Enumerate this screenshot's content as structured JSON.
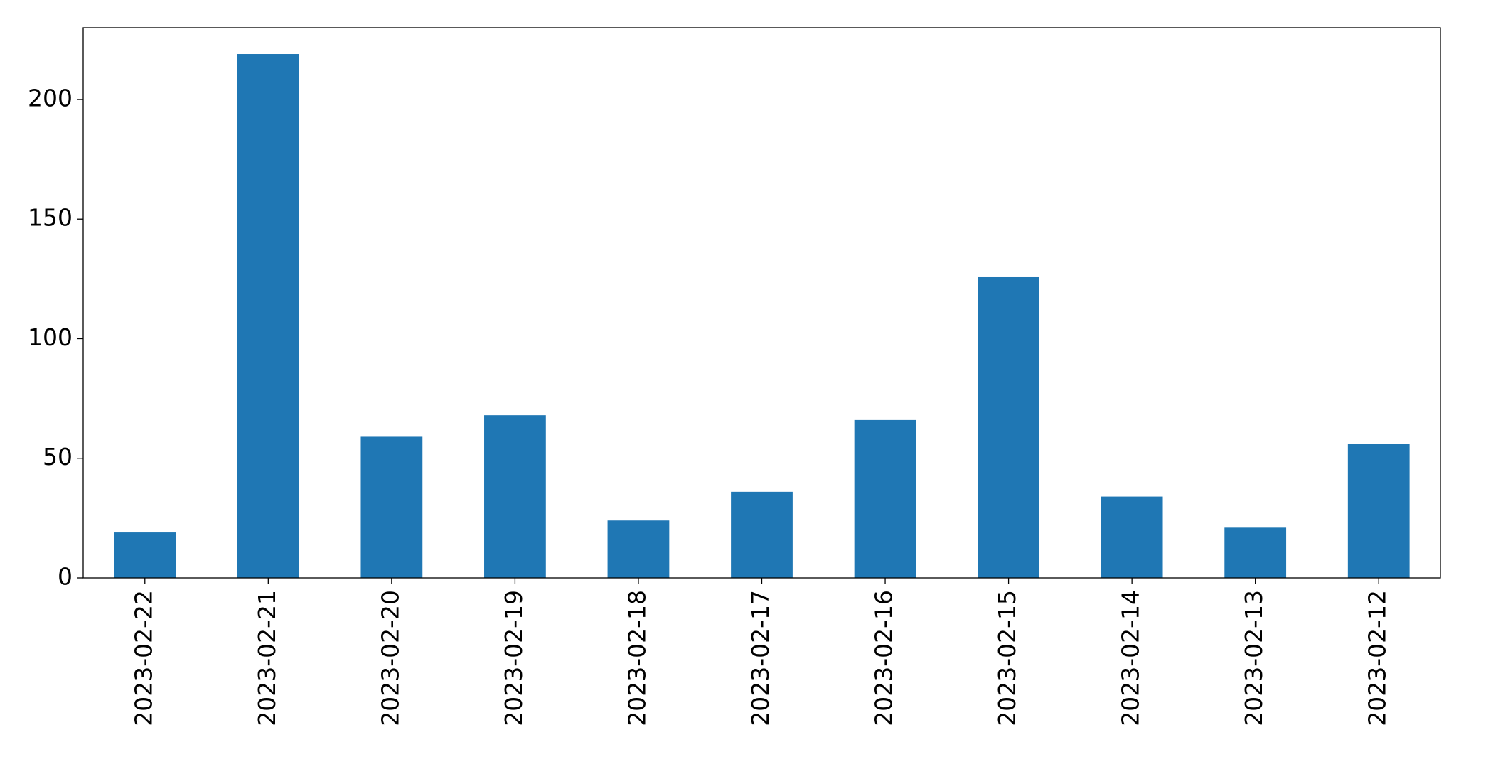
{
  "chart_data": {
    "type": "bar",
    "categories": [
      "2023-02-22",
      "2023-02-21",
      "2023-02-20",
      "2023-02-19",
      "2023-02-18",
      "2023-02-17",
      "2023-02-16",
      "2023-02-15",
      "2023-02-14",
      "2023-02-13",
      "2023-02-12"
    ],
    "values": [
      19,
      219,
      59,
      68,
      24,
      36,
      66,
      126,
      34,
      21,
      56
    ],
    "color": "#1f77b4",
    "ylim": [
      0,
      230
    ],
    "yticks": [
      0,
      50,
      100,
      150,
      200
    ],
    "grid": false
  }
}
